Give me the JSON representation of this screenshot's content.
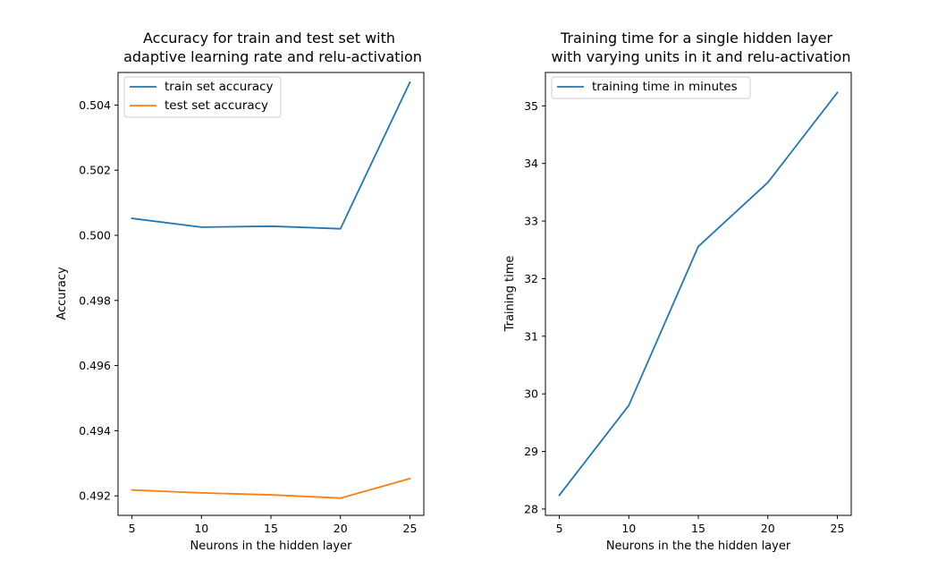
{
  "chart_data": [
    {
      "type": "line",
      "title_lines": [
        "Accuracy for train and test set with",
        "adaptive learning rate and relu-activation"
      ],
      "xlabel": "Neurons in the hidden layer",
      "ylabel": "Accuracy",
      "x": [
        5,
        10,
        15,
        20,
        25
      ],
      "xlim": [
        4.0,
        26.0
      ],
      "ylim": [
        0.4914,
        0.505
      ],
      "xticks": [
        5,
        10,
        15,
        20,
        25
      ],
      "xtick_labels": [
        "5",
        "10",
        "15",
        "20",
        "25"
      ],
      "yticks": [
        0.492,
        0.494,
        0.496,
        0.498,
        0.5,
        0.502,
        0.504
      ],
      "ytick_labels": [
        "0.492",
        "0.494",
        "0.496",
        "0.498",
        "0.500",
        "0.502",
        "0.504"
      ],
      "grid": false,
      "legend_position": "top-left",
      "series": [
        {
          "name": "train set accuracy",
          "color": "#1f77b4",
          "values": [
            0.50052,
            0.50025,
            0.50028,
            0.5002,
            0.5047
          ]
        },
        {
          "name": "test set accuracy",
          "color": "#ff7f0e",
          "values": [
            0.49218,
            0.49209,
            0.49203,
            0.49193,
            0.49253
          ]
        }
      ]
    },
    {
      "type": "line",
      "title_lines": [
        "Training time for a single hidden layer",
        "with varying units in it and relu-activation"
      ],
      "xlabel": "Neurons in the the hidden layer",
      "ylabel": "Training time",
      "x": [
        5,
        10,
        15,
        20,
        25
      ],
      "xlim": [
        4.0,
        26.0
      ],
      "ylim": [
        27.89,
        35.58
      ],
      "xticks": [
        5,
        10,
        15,
        20,
        25
      ],
      "xtick_labels": [
        "5",
        "10",
        "15",
        "20",
        "25"
      ],
      "yticks": [
        28,
        29,
        30,
        31,
        32,
        33,
        34,
        35
      ],
      "ytick_labels": [
        "28",
        "29",
        "30",
        "31",
        "32",
        "33",
        "34",
        "35"
      ],
      "grid": false,
      "legend_position": "top-left",
      "series": [
        {
          "name": "training time in minutes",
          "color": "#1f77b4",
          "values": [
            28.24,
            29.8,
            32.56,
            33.67,
            35.23
          ]
        }
      ]
    }
  ]
}
